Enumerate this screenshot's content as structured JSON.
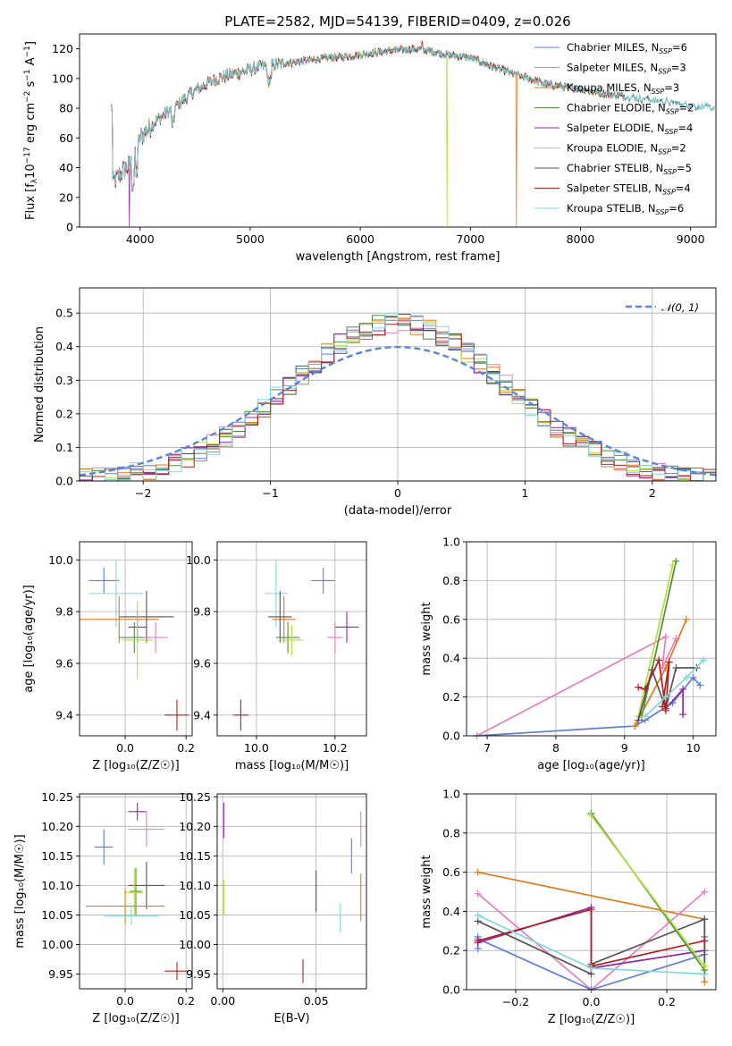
{
  "colors": {
    "chabrier_miles": "#5b7fd6",
    "salpeter_miles": "#e57fb9",
    "kroupa_miles": "#e07a1f",
    "chabrier_elodie": "#4f8f3f",
    "salpeter_elodie": "#8e2aa6",
    "kroupa_elodie": "#b7dc3c",
    "chabrier_stelib": "#555555",
    "salpeter_stelib": "#b51f1f",
    "kroupa_stelib": "#7fd8de",
    "normal": "#5b85d6"
  },
  "chart_data": [
    {
      "id": "spectrum",
      "type": "line",
      "title": "PLATE=2582, MJD=54139, FIBERID=0409, z=0.026",
      "xlabel": "wavelength [Angstrom, rest frame]",
      "ylabel_parts": [
        "Flux [f",
        "λ",
        "10",
        "−17",
        " erg cm",
        "−2",
        " s",
        "−1",
        " A",
        "−1",
        "]"
      ],
      "xlim": [
        3450,
        9230
      ],
      "ylim": [
        0,
        130
      ],
      "xticks": [
        4000,
        5000,
        6000,
        7000,
        8000,
        9000
      ],
      "yticks": [
        0,
        20,
        40,
        60,
        80,
        100,
        120
      ],
      "legend": [
        {
          "key": "chabrier_miles",
          "label": "Chabrier MILES, N",
          "sub": "SSP",
          "tail": "=6"
        },
        {
          "key": "salpeter_miles",
          "label": "Salpeter MILES, N",
          "sub": "SSP",
          "tail": "=3"
        },
        {
          "key": "kroupa_miles",
          "label": "Kroupa MILES, N",
          "sub": "SSP",
          "tail": "=3"
        },
        {
          "key": "chabrier_elodie",
          "label": "Chabrier ELODIE, N",
          "sub": "SSP",
          "tail": "=2"
        },
        {
          "key": "salpeter_elodie",
          "label": "Salpeter ELODIE, N",
          "sub": "SSP",
          "tail": "=4"
        },
        {
          "key": "kroupa_elodie",
          "label": "Kroupa ELODIE, N",
          "sub": "SSP",
          "tail": "=2"
        },
        {
          "key": "chabrier_stelib",
          "label": "Chabrier STELIB, N",
          "sub": "SSP",
          "tail": "=5"
        },
        {
          "key": "salpeter_stelib",
          "label": "Salpeter STELIB, N",
          "sub": "SSP",
          "tail": "=4"
        },
        {
          "key": "kroupa_stelib",
          "label": "Kroupa STELIB, N",
          "sub": "SSP",
          "tail": "=6"
        }
      ],
      "continuum": [
        [
          3750,
          30
        ],
        [
          3850,
          38
        ],
        [
          3950,
          45
        ],
        [
          4000,
          60
        ],
        [
          4150,
          72
        ],
        [
          4300,
          80
        ],
        [
          4500,
          92
        ],
        [
          4700,
          100
        ],
        [
          4900,
          104
        ],
        [
          5100,
          108
        ],
        [
          5300,
          110
        ],
        [
          5500,
          112
        ],
        [
          5700,
          114
        ],
        [
          5900,
          115
        ],
        [
          6100,
          117
        ],
        [
          6300,
          119
        ],
        [
          6500,
          120
        ],
        [
          6600,
          119
        ],
        [
          6800,
          116
        ],
        [
          7000,
          114
        ],
        [
          7200,
          108
        ],
        [
          7400,
          103
        ],
        [
          7700,
          96
        ],
        [
          8000,
          93
        ],
        [
          8200,
          90
        ],
        [
          8500,
          87
        ],
        [
          8800,
          84
        ],
        [
          9000,
          82
        ],
        [
          9200,
          80
        ]
      ],
      "dropouts": [
        {
          "key": "salpeter_elodie",
          "x": 3900,
          "to": 0
        },
        {
          "key": "kroupa_elodie",
          "x": 6790,
          "to": 0
        },
        {
          "key": "kroupa_miles",
          "x": 7420,
          "to": 0
        }
      ]
    },
    {
      "id": "residual_hist",
      "type": "histogram",
      "xlabel": "(data-model)/error",
      "ylabel": "Normed distribution",
      "xlim": [
        -2.5,
        2.5
      ],
      "ylim": [
        0,
        0.575
      ],
      "xticks": [
        -2,
        -1,
        0,
        1,
        2
      ],
      "yticks": [
        0.0,
        0.1,
        0.2,
        0.3,
        0.4,
        0.5
      ],
      "legend_label": "𝒩(0, 1)",
      "bin_width": 0.1
    },
    {
      "id": "age_vs_z",
      "type": "errorbar",
      "xlabel": "Z [log₁₀(Z/Z☉)]",
      "ylabel": "age  [log₁₀(age/yr)]",
      "xlim": [
        -0.15,
        0.22
      ],
      "ylim": [
        9.32,
        10.07
      ],
      "xticks": [
        0.0,
        0.2
      ],
      "yticks": [
        9.4,
        9.6,
        9.8,
        10.0
      ],
      "points": [
        {
          "key": "chabrier_miles",
          "x": -0.07,
          "y": 9.92,
          "ex": 0.05,
          "ey": 0.05
        },
        {
          "key": "kroupa_stelib",
          "x": -0.03,
          "y": 9.87,
          "ex": 0.09,
          "ey": 0.13
        },
        {
          "key": "kroupa_miles",
          "x": -0.02,
          "y": 9.77,
          "ex": 0.13,
          "ey": 0.09
        },
        {
          "key": "chabrier_stelib",
          "x": 0.07,
          "y": 9.78,
          "ex": 0.09,
          "ey": 0.1
        },
        {
          "key": "salpeter_elodie",
          "x": 0.04,
          "y": 9.74,
          "ex": 0.03,
          "ey": 0.06
        },
        {
          "key": "chabrier_elodie",
          "x": 0.03,
          "y": 9.7,
          "ex": 0.05,
          "ey": 0.06
        },
        {
          "key": "kroupa_elodie",
          "x": 0.04,
          "y": 9.69,
          "ex": 0.05,
          "ey": 0.15
        },
        {
          "key": "salpeter_miles",
          "x": 0.1,
          "y": 9.7,
          "ex": 0.04,
          "ey": 0.06
        },
        {
          "key": "salpeter_stelib",
          "x": 0.17,
          "y": 9.4,
          "ex": 0.04,
          "ey": 0.06
        }
      ]
    },
    {
      "id": "age_vs_mass",
      "type": "errorbar",
      "xlabel": "mass [log₁₀(M/M☉)]",
      "xlim": [
        9.9,
        10.28
      ],
      "ylim": [
        9.32,
        10.07
      ],
      "xticks": [
        10.0,
        10.2
      ],
      "yticks": [
        9.4,
        9.6,
        9.8,
        10.0
      ],
      "points": [
        {
          "key": "chabrier_miles",
          "x": 10.17,
          "y": 9.92,
          "ex": 0.03,
          "ey": 0.05
        },
        {
          "key": "kroupa_stelib",
          "x": 10.05,
          "y": 9.87,
          "ex": 0.03,
          "ey": 0.13
        },
        {
          "key": "kroupa_miles",
          "x": 10.07,
          "y": 9.77,
          "ex": 0.03,
          "ey": 0.09
        },
        {
          "key": "chabrier_stelib",
          "x": 10.06,
          "y": 9.78,
          "ex": 0.03,
          "ey": 0.1
        },
        {
          "key": "salpeter_elodie",
          "x": 10.23,
          "y": 9.74,
          "ex": 0.03,
          "ey": 0.06
        },
        {
          "key": "chabrier_elodie",
          "x": 10.08,
          "y": 9.7,
          "ex": 0.03,
          "ey": 0.06
        },
        {
          "key": "kroupa_elodie",
          "x": 10.09,
          "y": 9.69,
          "ex": 0.03,
          "ey": 0.06
        },
        {
          "key": "salpeter_miles",
          "x": 10.2,
          "y": 9.7,
          "ex": 0.02,
          "ey": 0.06
        },
        {
          "key": "salpeter_stelib",
          "x": 9.96,
          "y": 9.4,
          "ex": 0.02,
          "ey": 0.06
        }
      ]
    },
    {
      "id": "weight_vs_age",
      "type": "line",
      "xlabel": "age  [log₁₀(age/yr)]",
      "ylabel": "mass weight",
      "xlim": [
        6.7,
        10.33
      ],
      "ylim": [
        0,
        1.0
      ],
      "xticks": [
        7,
        8,
        9,
        10
      ],
      "yticks": [
        0.0,
        0.2,
        0.4,
        0.6,
        0.8,
        1.0
      ],
      "series": [
        {
          "key": "chabrier_miles",
          "points": [
            [
              6.85,
              0.0
            ],
            [
              9.15,
              0.05
            ],
            [
              9.3,
              0.08
            ],
            [
              9.7,
              0.17
            ],
            [
              10.0,
              0.3
            ],
            [
              10.1,
              0.26
            ]
          ]
        },
        {
          "key": "salpeter_miles",
          "points": [
            [
              6.85,
              0.0
            ],
            [
              9.6,
              0.51
            ],
            [
              9.55,
              0.35
            ],
            [
              9.75,
              0.5
            ]
          ]
        },
        {
          "key": "kroupa_miles",
          "points": [
            [
              9.15,
              0.05
            ],
            [
              9.6,
              0.35
            ],
            [
              9.9,
              0.6
            ]
          ]
        },
        {
          "key": "chabrier_elodie",
          "points": [
            [
              9.25,
              0.1
            ],
            [
              9.75,
              0.9
            ]
          ]
        },
        {
          "key": "salpeter_elodie",
          "points": [
            [
              9.6,
              0.14
            ],
            [
              9.85,
              0.24
            ],
            [
              9.85,
              0.11
            ]
          ]
        },
        {
          "key": "kroupa_elodie",
          "points": [
            [
              9.2,
              0.1
            ],
            [
              9.7,
              0.88
            ]
          ]
        },
        {
          "key": "chabrier_stelib",
          "points": [
            [
              9.2,
              0.08
            ],
            [
              9.4,
              0.34
            ],
            [
              9.6,
              0.14
            ],
            [
              9.75,
              0.35
            ],
            [
              10.05,
              0.35
            ]
          ]
        },
        {
          "key": "salpeter_stelib",
          "points": [
            [
              9.2,
              0.25
            ],
            [
              9.3,
              0.24
            ],
            [
              9.5,
              0.39
            ],
            [
              9.6,
              0.13
            ],
            [
              9.65,
              0.38
            ],
            [
              9.55,
              0.15
            ]
          ]
        },
        {
          "key": "kroupa_stelib",
          "points": [
            [
              9.3,
              0.1
            ],
            [
              9.6,
              0.2
            ],
            [
              9.9,
              0.3
            ],
            [
              10.15,
              0.39
            ]
          ]
        }
      ]
    },
    {
      "id": "mass_vs_z",
      "type": "errorbar",
      "xlabel": "Z [log₁₀(Z/Z☉)]",
      "ylabel": "mass [log₁₀(M/M☉)]",
      "xlim": [
        -0.15,
        0.22
      ],
      "ylim": [
        9.925,
        10.255
      ],
      "xticks": [
        0.0,
        0.2
      ],
      "yticks": [
        9.95,
        10.0,
        10.05,
        10.1,
        10.15,
        10.2,
        10.25
      ],
      "points": [
        {
          "key": "salpeter_elodie",
          "x": 0.04,
          "y": 10.225,
          "ex": 0.03,
          "ey": 0.015
        },
        {
          "key": "salpeter_miles",
          "x": 0.07,
          "y": 10.195,
          "ex": 0.06,
          "ey": 0.03
        },
        {
          "key": "chabrier_miles",
          "x": -0.07,
          "y": 10.165,
          "ex": 0.03,
          "ey": 0.03
        },
        {
          "key": "chabrier_stelib",
          "x": 0.07,
          "y": 10.1,
          "ex": 0.06,
          "ey": 0.04
        },
        {
          "key": "chabrier_elodie",
          "x": 0.035,
          "y": 10.09,
          "ex": 0.02,
          "ey": 0.04
        },
        {
          "key": "kroupa_elodie",
          "x": 0.03,
          "y": 10.088,
          "ex": 0.03,
          "ey": 0.04
        },
        {
          "key": "kroupa_miles",
          "x": 0.0,
          "y": 10.065,
          "ex": 0.13,
          "ey": 0.03
        },
        {
          "key": "kroupa_stelib",
          "x": 0.02,
          "y": 10.048,
          "ex": 0.09,
          "ey": 0.015
        },
        {
          "key": "salpeter_stelib",
          "x": 0.17,
          "y": 9.955,
          "ex": 0.04,
          "ey": 0.015
        }
      ]
    },
    {
      "id": "mass_vs_ebv",
      "type": "errorbar",
      "xlabel": "E(B-V)",
      "xlim": [
        -0.003,
        0.077
      ],
      "ylim": [
        9.925,
        10.255
      ],
      "xticks": [
        0.0,
        0.05
      ],
      "yticks": [
        9.95,
        10.0,
        10.05,
        10.1,
        10.15,
        10.2,
        10.25
      ],
      "points": [
        {
          "key": "salpeter_elodie",
          "x": 0.0005,
          "y": 10.21,
          "ex": 0.0,
          "ey": 0.03
        },
        {
          "key": "salpeter_miles",
          "x": 0.074,
          "y": 10.195,
          "ex": 0.0,
          "ey": 0.03
        },
        {
          "key": "chabrier_miles",
          "x": 0.069,
          "y": 10.15,
          "ex": 0.0,
          "ey": 0.03
        },
        {
          "key": "chabrier_stelib",
          "x": 0.05,
          "y": 10.09,
          "ex": 0.0,
          "ey": 0.035
        },
        {
          "key": "kroupa_elodie",
          "x": 0.0005,
          "y": 10.08,
          "ex": 0.0,
          "ey": 0.03
        },
        {
          "key": "kroupa_miles",
          "x": 0.074,
          "y": 10.08,
          "ex": 0.0,
          "ey": 0.04
        },
        {
          "key": "kroupa_stelib",
          "x": 0.063,
          "y": 10.045,
          "ex": 0.0,
          "ey": 0.025
        },
        {
          "key": "salpeter_stelib",
          "x": 0.043,
          "y": 9.955,
          "ex": 0.0,
          "ey": 0.02
        }
      ]
    },
    {
      "id": "weight_vs_z",
      "type": "line",
      "xlabel": "Z [log₁₀(Z/Z☉)]",
      "ylabel": "mass weight",
      "xlim": [
        -0.33,
        0.33
      ],
      "ylim": [
        0,
        1.0
      ],
      "xticks": [
        -0.2,
        0.0,
        0.2
      ],
      "xtick_labels": [
        "−0.2",
        "0.0",
        "0.2"
      ],
      "yticks": [
        0.0,
        0.2,
        0.4,
        0.6,
        0.8,
        1.0
      ],
      "series": [
        {
          "key": "kroupa_miles",
          "points": [
            [
              -0.3,
              0.6
            ],
            [
              0.3,
              0.36
            ],
            [
              0.3,
              0.04
            ]
          ]
        },
        {
          "key": "salpeter_miles",
          "points": [
            [
              -0.3,
              0.49
            ],
            [
              0.0,
              0.0
            ],
            [
              0.3,
              0.5
            ]
          ]
        },
        {
          "key": "chabrier_miles",
          "points": [
            [
              -0.3,
              0.27
            ],
            [
              -0.3,
              0.21
            ],
            [
              -0.3,
              0.26
            ],
            [
              0.0,
              0.0
            ],
            [
              0.3,
              0.18
            ],
            [
              0.3,
              0.27
            ]
          ]
        },
        {
          "key": "salpeter_elodie",
          "points": [
            [
              -0.3,
              0.24
            ],
            [
              0.0,
              0.42
            ],
            [
              0.0,
              0.11
            ],
            [
              0.3,
              0.2
            ]
          ]
        },
        {
          "key": "chabrier_stelib",
          "points": [
            [
              -0.3,
              0.35
            ],
            [
              0.0,
              0.08
            ],
            [
              0.0,
              0.13
            ],
            [
              0.3,
              0.36
            ],
            [
              0.3,
              0.08
            ]
          ]
        },
        {
          "key": "salpeter_stelib",
          "points": [
            [
              -0.3,
              0.25
            ],
            [
              0.0,
              0.41
            ],
            [
              0.0,
              0.12
            ],
            [
              0.3,
              0.25
            ]
          ]
        },
        {
          "key": "kroupa_stelib",
          "points": [
            [
              -0.3,
              0.38
            ],
            [
              0.0,
              0.11
            ],
            [
              0.3,
              0.08
            ]
          ]
        },
        {
          "key": "chabrier_elodie",
          "points": [
            [
              0.0,
              0.9
            ],
            [
              0.3,
              0.1
            ]
          ]
        },
        {
          "key": "kroupa_elodie",
          "points": [
            [
              0.0,
              0.89
            ],
            [
              0.3,
              0.12
            ]
          ]
        }
      ]
    }
  ]
}
